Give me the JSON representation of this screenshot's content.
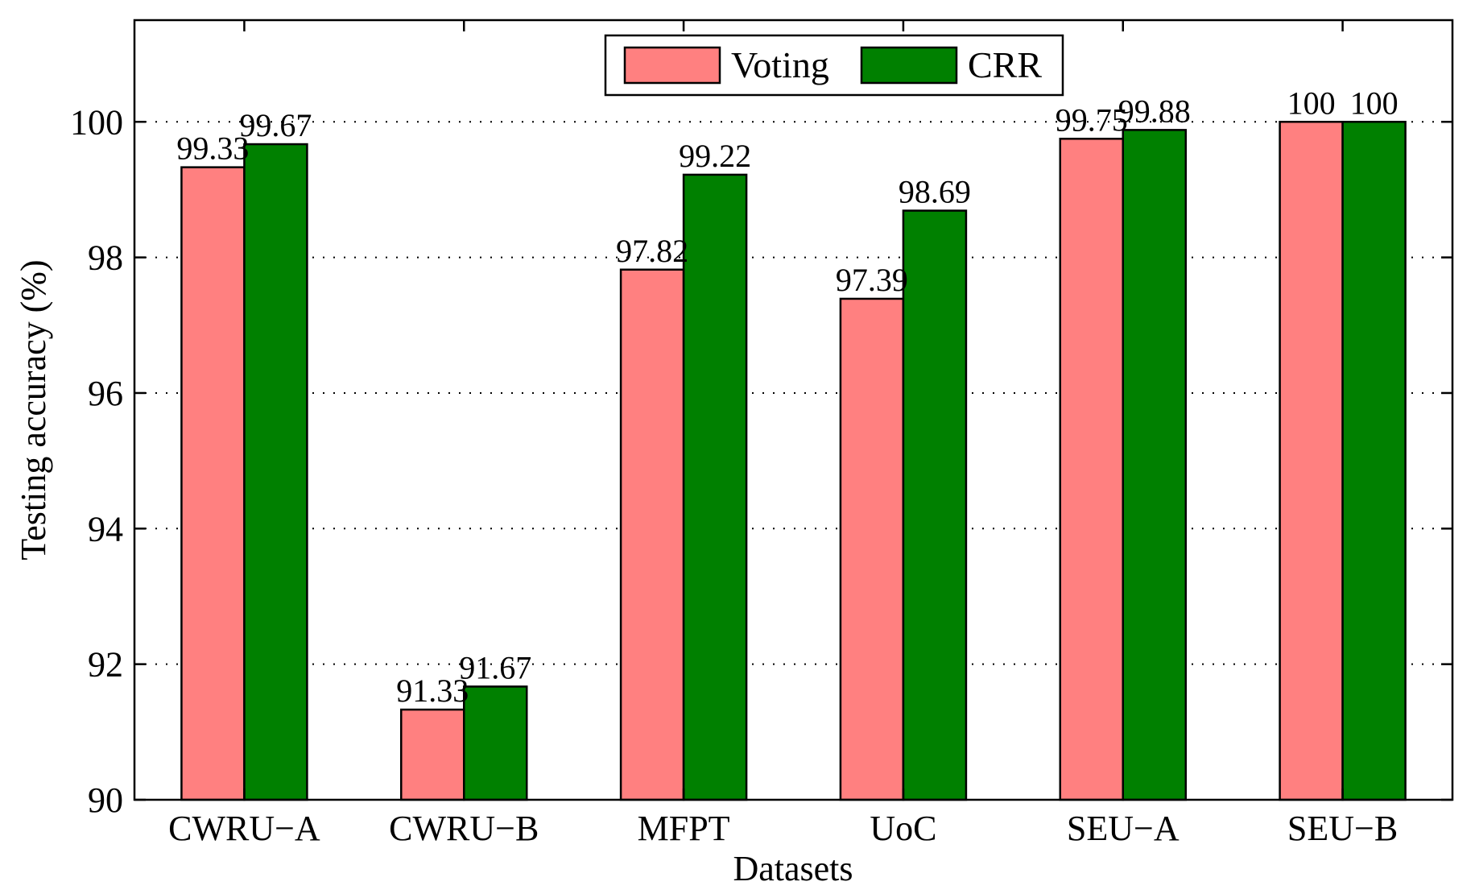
{
  "chart_data": {
    "type": "bar",
    "title": "",
    "xlabel": "Datasets",
    "ylabel": "Testing accuracy (%)",
    "ylim": [
      90,
      101.5
    ],
    "yticks": [
      90,
      92,
      94,
      96,
      98,
      100
    ],
    "grid": "horizontal dotted",
    "legend_position": "top-center",
    "categories": [
      "CWRU−A",
      "CWRU−B",
      "MFPT",
      "UoC",
      "SEU−A",
      "SEU−B"
    ],
    "series": [
      {
        "name": "Voting",
        "color": "#ff8080",
        "values": [
          99.33,
          91.33,
          97.82,
          97.39,
          99.75,
          100
        ],
        "labels": [
          "99.33",
          "91.33",
          "97.82",
          "97.39",
          "99.75",
          "100"
        ]
      },
      {
        "name": "CRR",
        "color": "#008000",
        "values": [
          99.67,
          91.67,
          99.22,
          98.69,
          99.88,
          100
        ],
        "labels": [
          "99.67",
          "91.67",
          "99.22",
          "98.69",
          "99.88",
          "100"
        ]
      }
    ]
  }
}
